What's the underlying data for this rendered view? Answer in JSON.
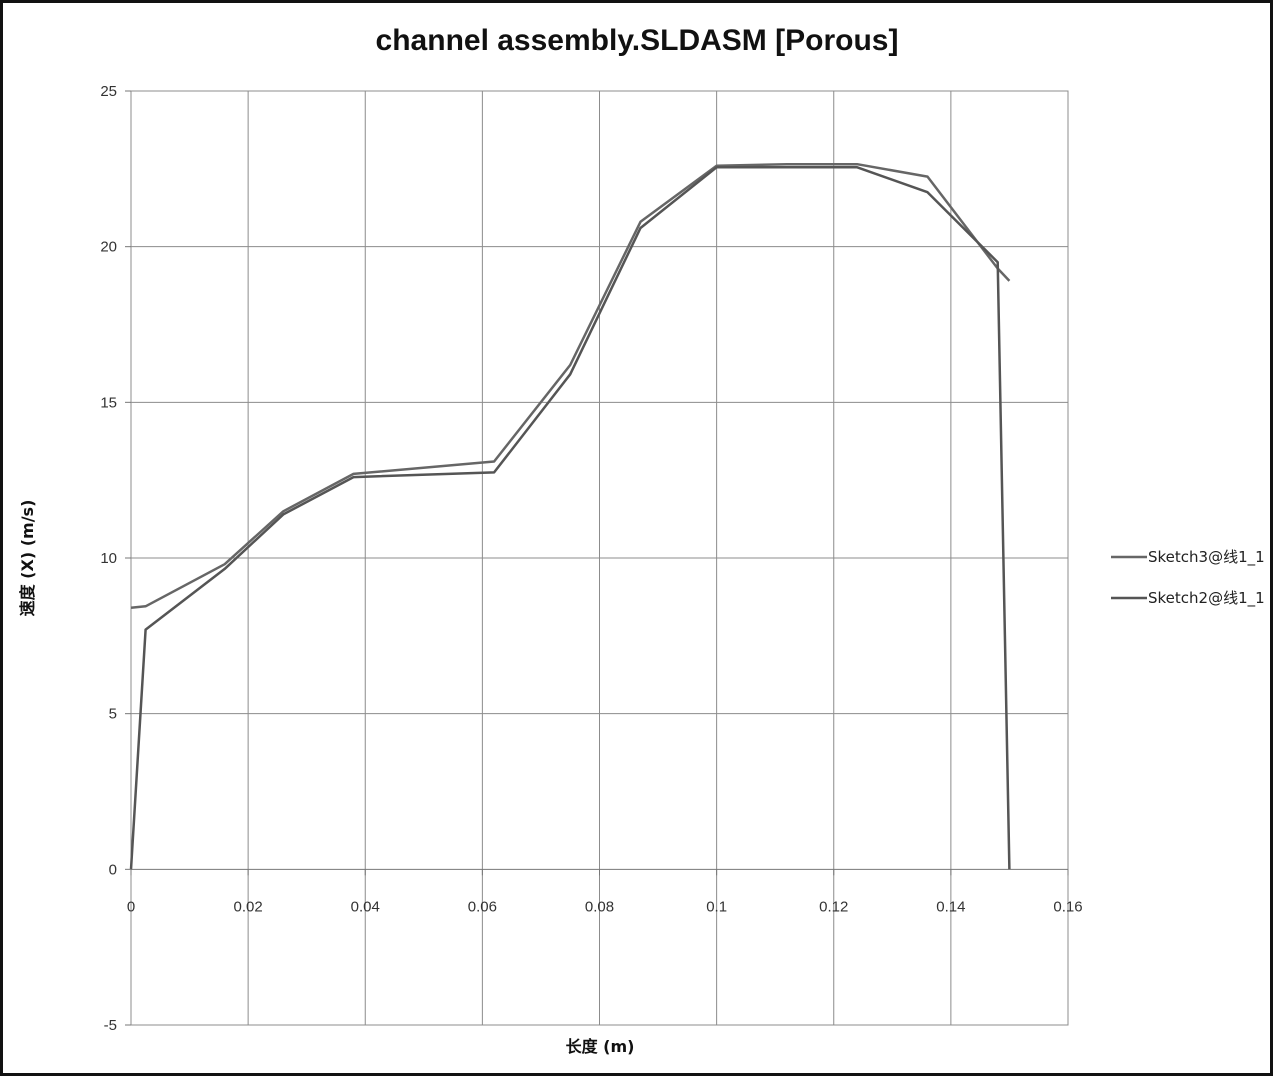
{
  "chart_data": {
    "type": "line",
    "title": "channel assembly.SLDASM [Porous]",
    "xlabel": "长度 (m)",
    "ylabel": "速度 (X) (m/s)",
    "xlim": [
      0,
      0.16
    ],
    "ylim": [
      -5,
      25
    ],
    "xticks": [
      0,
      0.02,
      0.04,
      0.06,
      0.08,
      0.1,
      0.12,
      0.14,
      0.16
    ],
    "xtick_labels": [
      "0",
      "0.02",
      "0.04",
      "0.06",
      "0.08",
      "0.1",
      "0.12",
      "0.14",
      "0.16"
    ],
    "yticks": [
      -5,
      0,
      5,
      10,
      15,
      20,
      25
    ],
    "ytick_labels": [
      "-5",
      "0",
      "5",
      "10",
      "15",
      "20",
      "25"
    ],
    "grid": true,
    "legend_position": "right",
    "series": [
      {
        "name": "Sketch3@线1_1",
        "color": "#666666",
        "x": [
          0,
          0.0025,
          0.016,
          0.026,
          0.038,
          0.062,
          0.075,
          0.087,
          0.1,
          0.112,
          0.124,
          0.136,
          0.148,
          0.15
        ],
        "y": [
          8.4,
          8.45,
          9.8,
          11.5,
          12.7,
          13.1,
          16.2,
          20.8,
          22.6,
          22.65,
          22.65,
          22.25,
          19.3,
          18.9
        ]
      },
      {
        "name": "Sketch2@线1_1",
        "color": "#555555",
        "x": [
          0,
          0.0025,
          0.016,
          0.026,
          0.038,
          0.062,
          0.075,
          0.087,
          0.1,
          0.112,
          0.124,
          0.136,
          0.148,
          0.15
        ],
        "y": [
          0,
          7.7,
          9.65,
          11.4,
          12.6,
          12.75,
          15.9,
          20.6,
          22.55,
          22.55,
          22.55,
          21.75,
          19.5,
          0
        ]
      }
    ]
  }
}
